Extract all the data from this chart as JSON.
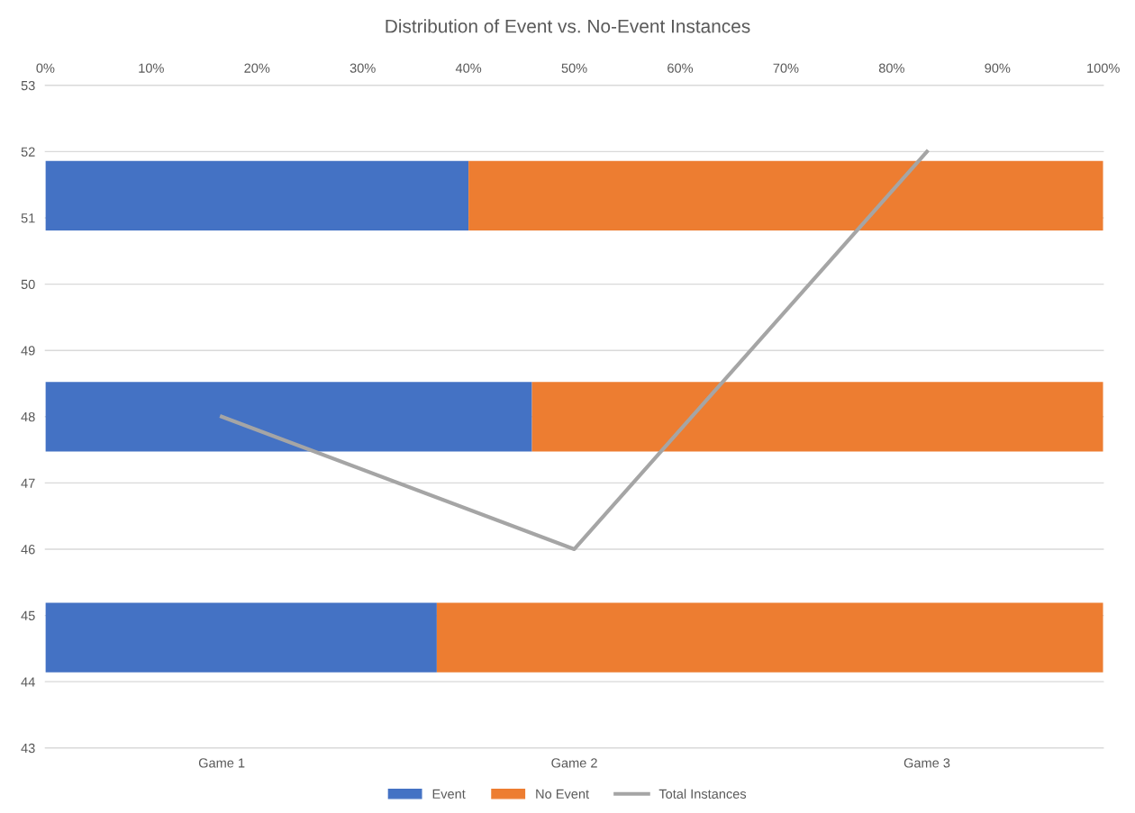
{
  "chart_data": [
    {
      "type": "bar",
      "orientation": "horizontal",
      "stacked": true,
      "title": "Distribution of Event vs. No-Event Instances",
      "categories": [
        null,
        null,
        null
      ],
      "series": [
        {
          "name": "Event",
          "color": "#4472c4",
          "values": [
            40,
            46,
            37
          ]
        },
        {
          "name": "No Event",
          "color": "#ed7d31",
          "values": [
            60,
            54,
            63
          ]
        }
      ],
      "xlim": [
        0,
        100
      ],
      "xticks": [
        {
          "value": 0,
          "label": "0%"
        },
        {
          "value": 10,
          "label": "10%"
        },
        {
          "value": 20,
          "label": "20%"
        },
        {
          "value": 30,
          "label": "30%"
        },
        {
          "value": 40,
          "label": "40%"
        },
        {
          "value": 50,
          "label": "50%"
        },
        {
          "value": 60,
          "label": "60%"
        },
        {
          "value": 70,
          "label": "70%"
        },
        {
          "value": 80,
          "label": "80%"
        },
        {
          "value": 90,
          "label": "90%"
        },
        {
          "value": 100,
          "label": "100%"
        }
      ],
      "tick_labels": "x",
      "legend": "bottom"
    },
    {
      "type": "line",
      "categories": [
        "Game 1",
        "Game 2",
        "Game 3"
      ],
      "series": [
        {
          "name": "Total Instances",
          "color": "#a5a5a5",
          "values": [
            48,
            46,
            52
          ]
        }
      ],
      "ylim": [
        43,
        53
      ],
      "yticks": [
        43,
        44,
        45,
        46,
        47,
        48,
        49,
        50,
        51,
        52,
        53
      ],
      "grid": "y",
      "marker": "none",
      "line_style": "solid",
      "legend": "bottom"
    }
  ]
}
